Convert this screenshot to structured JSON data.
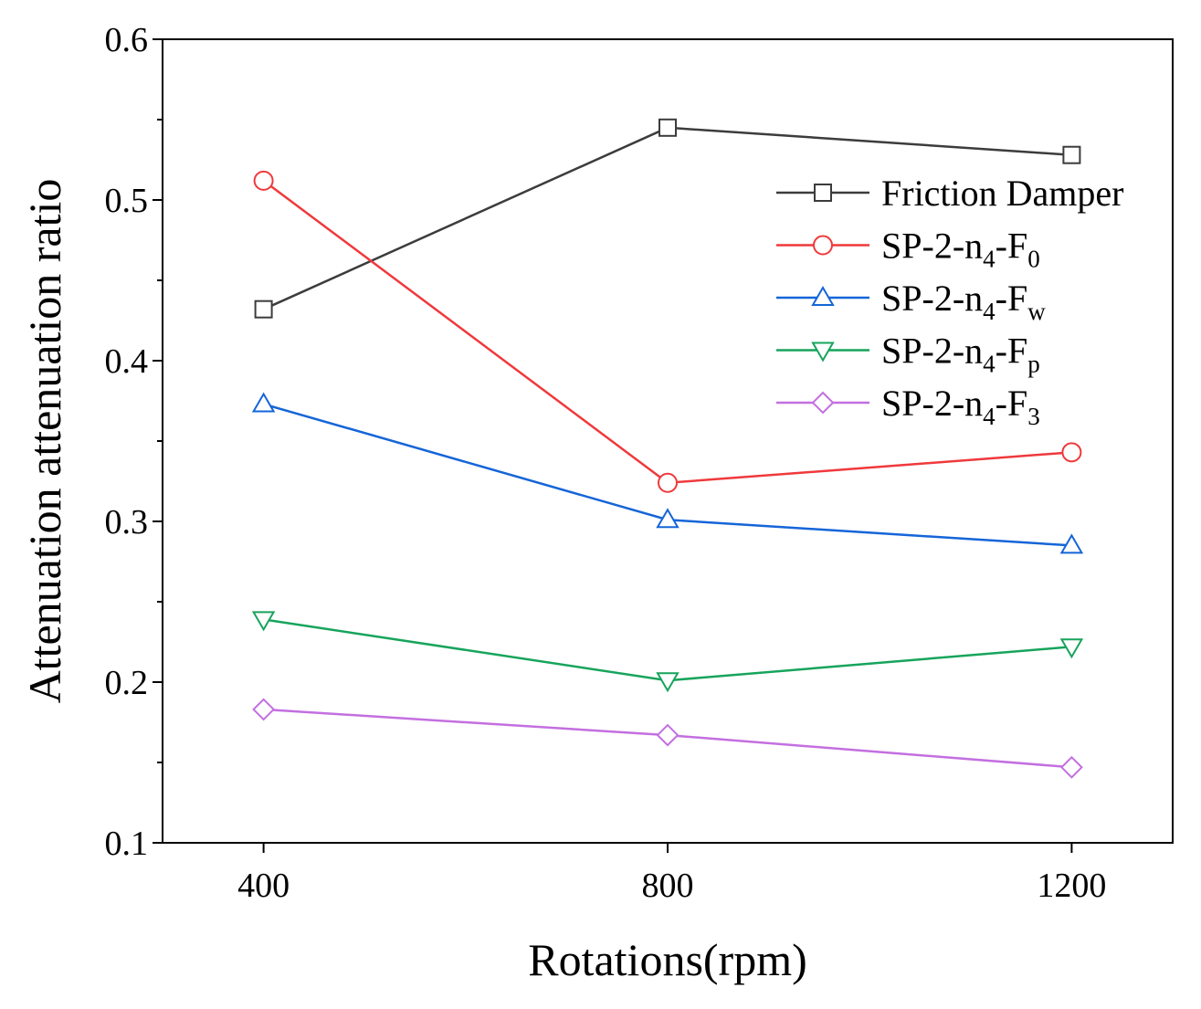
{
  "chart_data": {
    "type": "line",
    "title": "",
    "xlabel": "Rotations(rpm)",
    "ylabel": "Attenuation attenuation ratio",
    "x": [
      400,
      800,
      1200
    ],
    "x_tick_labels": [
      "400",
      "800",
      "1200"
    ],
    "xlim": [
      300,
      1300
    ],
    "ylim": [
      0.1,
      0.6
    ],
    "y_ticks": [
      0.1,
      0.2,
      0.3,
      0.4,
      0.5,
      0.6
    ],
    "y_tick_labels": [
      "0.1",
      "0.2",
      "0.3",
      "0.4",
      "0.5",
      "0.6"
    ],
    "grid": false,
    "legend_position": "top-right",
    "series": [
      {
        "name": "Friction Damper",
        "legend_main": "Friction Damper",
        "legend_sub": "",
        "marker": "square",
        "color": "#3c3c3c",
        "values": [
          0.432,
          0.545,
          0.528
        ]
      },
      {
        "name": "SP-2-n4-F0",
        "legend_main": "SP-2-n",
        "legend_sub": "4",
        "legend_mid": "-F",
        "legend_sub2": "0",
        "marker": "circle",
        "color": "#f0393c",
        "values": [
          0.512,
          0.324,
          0.343
        ]
      },
      {
        "name": "SP-2-n4-Fw",
        "legend_main": "SP-2-n",
        "legend_sub": "4",
        "legend_mid": "-F",
        "legend_sub2": "w",
        "marker": "triangle-up",
        "color": "#1565d8",
        "values": [
          0.373,
          0.301,
          0.285
        ]
      },
      {
        "name": "SP-2-n4-Fp",
        "legend_main": "SP-2-n",
        "legend_sub": "4",
        "legend_mid": "-F",
        "legend_sub2": "p",
        "marker": "triangle-down",
        "color": "#17a45c",
        "values": [
          0.239,
          0.201,
          0.222
        ]
      },
      {
        "name": "SP-2-n4-F3",
        "legend_main": "SP-2-n",
        "legend_sub": "4",
        "legend_mid": "-F",
        "legend_sub2": "3",
        "marker": "diamond",
        "color": "#c36fe0",
        "values": [
          0.183,
          0.167,
          0.147
        ]
      }
    ]
  }
}
